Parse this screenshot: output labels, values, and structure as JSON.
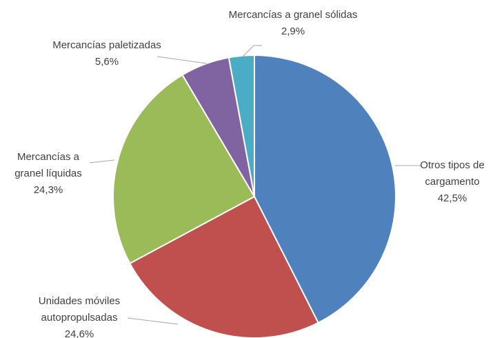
{
  "chart_data": {
    "type": "pie",
    "categories": [
      "Otros tipos de cargamento",
      "Unidades móviles autopropulsadas",
      "Mercancías a granel líquidas",
      "Mercancías paletizadas",
      "Mercancías a granel sólidas"
    ],
    "values": [
      42.5,
      24.6,
      24.3,
      5.6,
      2.9
    ],
    "value_labels": [
      "42,5%",
      "24,6%",
      "24,3%",
      "5,6%",
      "2,9%"
    ],
    "colors": [
      "#4f81bd",
      "#c0504d",
      "#9bbb59",
      "#8064a2",
      "#4bacc6"
    ]
  }
}
